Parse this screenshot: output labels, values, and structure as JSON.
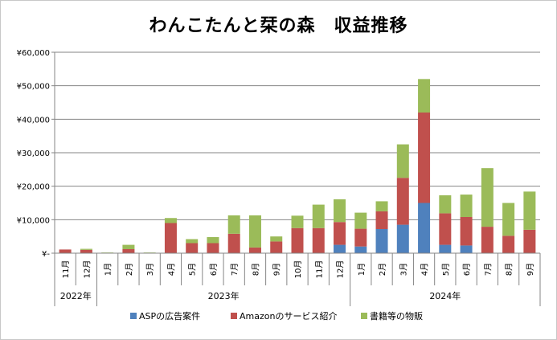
{
  "chart_data": {
    "type": "bar",
    "stacked": true,
    "title": "わんこたんと栞の森　収益推移",
    "y_tick_labels": [
      "¥-",
      "¥10,000",
      "¥20,000",
      "¥30,000",
      "¥40,000",
      "¥50,000",
      "¥60,000"
    ],
    "ylim": [
      0,
      60000
    ],
    "grid": true,
    "legend_position": "bottom",
    "categories": [
      "11月",
      "12月",
      "1月",
      "2月",
      "3月",
      "4月",
      "5月",
      "6月",
      "7月",
      "8月",
      "9月",
      "10月",
      "11月",
      "12月",
      "1月",
      "2月",
      "3月",
      "4月",
      "5月",
      "6月",
      "7月",
      "8月",
      "9月"
    ],
    "year_groups": [
      {
        "label": "2022年",
        "start": 0,
        "count": 2
      },
      {
        "label": "2023年",
        "start": 2,
        "count": 12
      },
      {
        "label": "2024年",
        "start": 14,
        "count": 9
      }
    ],
    "series": [
      {
        "name": "ASPの広告案件",
        "color": "#4f81bd",
        "values": [
          0,
          0,
          0,
          0,
          0,
          0,
          0,
          0,
          0,
          0,
          0,
          0,
          0,
          2500,
          2000,
          7200,
          8500,
          15000,
          2500,
          2300,
          0,
          0,
          0
        ]
      },
      {
        "name": "Amazonのサービス紹介",
        "color": "#c0504d",
        "values": [
          1100,
          1000,
          0,
          1200,
          0,
          9000,
          3000,
          3000,
          5800,
          1700,
          3500,
          7500,
          7500,
          6800,
          5300,
          5300,
          14000,
          27000,
          9400,
          8500,
          7900,
          5200,
          7000
        ]
      },
      {
        "name": "書籍等の物販",
        "color": "#9bbb59",
        "values": [
          0,
          300,
          200,
          1300,
          200,
          1500,
          1200,
          1800,
          5500,
          9600,
          1500,
          3700,
          7000,
          6800,
          4800,
          3000,
          10000,
          10000,
          5400,
          6700,
          17500,
          9800,
          11400
        ]
      }
    ]
  }
}
